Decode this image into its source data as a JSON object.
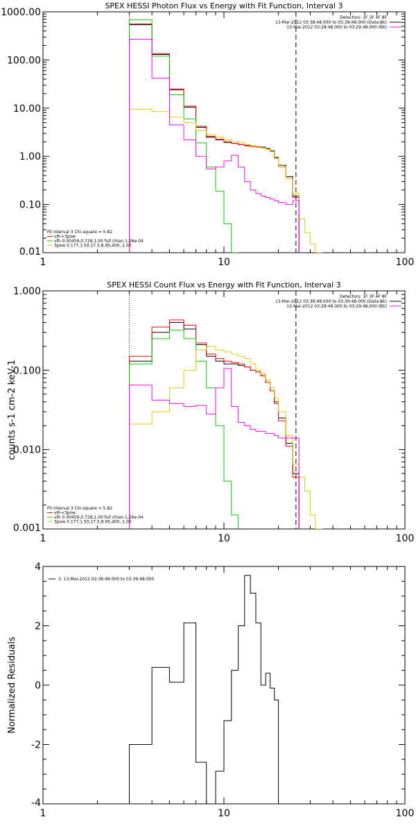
{
  "chart_data": [
    {
      "id": "photon",
      "type": "line",
      "title": "SPEX HESSI Photon Flux vs Energy with Fit Function, Interval 3",
      "ylabel": "",
      "xlabel": "",
      "xscale": "log",
      "yscale": "log",
      "xlim": [
        1,
        100
      ],
      "ylim": [
        0.01,
        1000
      ],
      "xticks": [
        1,
        10,
        100
      ],
      "xtick_labels": [
        "1",
        "10",
        "100"
      ],
      "yticks": [
        0.01,
        0.1,
        1,
        10,
        100,
        1000
      ],
      "ytick_labels": [
        "0.01",
        "0.10",
        "1.00",
        "10.00",
        "100.00",
        "1000.00"
      ],
      "vlines": [
        {
          "x": 3,
          "style": "dotted"
        },
        {
          "x": 25,
          "style": "dashed"
        }
      ],
      "legend_tr": [
        "Detectors: 1F 3F 4F 8F",
        "13-Mar-2012 03:38:48.000 to 03:39:48.000 (Data-Bk)",
        "13-Mar-2012 03:28:48.000 to 03:29:48.000 (Bk)"
      ],
      "legend_tr_colors": [
        "",
        "#000000",
        "#ff00ff"
      ],
      "legend_bl": [
        "Fit Interval 3   Chi-square = 5.82",
        "vth+3pow",
        "vth 0.00459,0.728,1.00   full chian 1.26e-04",
        "3pow 0.177,1.50,17.5,8.95,400.,1.00"
      ],
      "legend_bl_colors": [
        "",
        "#ff0000",
        "#00cc00",
        "#e6c800"
      ],
      "edges": [
        3,
        4,
        5,
        6,
        7,
        8,
        9,
        10,
        11,
        12,
        13,
        14,
        15,
        16,
        17,
        18,
        19,
        20,
        22,
        24,
        26,
        28,
        30,
        32,
        35
      ],
      "series": [
        {
          "color": "#000000",
          "values": [
            540,
            130,
            24,
            10.5,
            4,
            2.5,
            2.2,
            1.95,
            1.85,
            1.75,
            1.7,
            1.65,
            1.6,
            1.55,
            1.45,
            1.3,
            0.95,
            0.65,
            0.38,
            0.15,
            null,
            null,
            null,
            null
          ]
        },
        {
          "color": "#ff0000",
          "values": [
            560,
            135,
            25,
            11,
            4.2,
            2.6,
            2.25,
            2.0,
            1.85,
            1.75,
            1.65,
            1.6,
            1.55,
            1.5,
            1.4,
            1.25,
            0.9,
            0.6,
            0.35,
            0.14,
            null,
            null,
            null,
            null
          ]
        },
        {
          "color": "#00cc00",
          "values": [
            680,
            120,
            19,
            6,
            1.9,
            0.6,
            0.19,
            0.04,
            0.004,
            null,
            null,
            null,
            null,
            null,
            null,
            null,
            null,
            null,
            null,
            null,
            null,
            null,
            null,
            null
          ]
        },
        {
          "color": "#e6c800",
          "values": [
            9.5,
            8.5,
            6.5,
            5,
            3.5,
            2.8,
            2.5,
            2.2,
            2.0,
            1.9,
            1.75,
            1.65,
            1.6,
            1.5,
            1.4,
            1.25,
            0.9,
            0.6,
            0.35,
            0.17,
            0.05,
            0.026,
            0.015,
            0.01
          ]
        },
        {
          "color": "#ff00ff",
          "values": [
            270,
            42,
            4.5,
            2.2,
            1.0,
            0.55,
            0.6,
            0.8,
            1.05,
            0.6,
            0.3,
            0.2,
            0.17,
            0.15,
            0.14,
            0.13,
            0.12,
            0.11,
            0.1,
            0.12,
            null,
            null,
            null,
            null
          ]
        }
      ]
    },
    {
      "id": "count",
      "type": "line",
      "title": "SPEX HESSI Count Flux vs Energy with Fit Function, Interval 3",
      "ylabel": "counts s-1 cm-2 keV-1",
      "xlabel": "",
      "xscale": "log",
      "yscale": "log",
      "xlim": [
        1,
        100
      ],
      "ylim": [
        0.001,
        1
      ],
      "xticks": [
        1,
        10,
        100
      ],
      "xtick_labels": [
        "1",
        "10",
        "100"
      ],
      "yticks": [
        0.001,
        0.01,
        0.1,
        1
      ],
      "ytick_labels": [
        "0.001",
        "0.010",
        "0.100",
        "1.000"
      ],
      "vlines": [
        {
          "x": 3,
          "style": "dotted"
        },
        {
          "x": 25,
          "style": "dashed"
        }
      ],
      "legend_tr": [
        "Detectors: 1F 3F 4F 8F",
        "13-Mar-2012 03:38:48.000 to 03:39:48.000 (Data-Bk)",
        "13-Mar-2012 03:28:48.000 to 03:29:48.000 (Bk)"
      ],
      "legend_tr_colors": [
        "",
        "#000000",
        "#ff00ff"
      ],
      "legend_bl": [
        "Fit Interval 3   Chi-square = 5.82",
        "vth+3pow",
        "vth 0.00459,0.728,1.00   full chian 1.26e-04",
        "3pow 0.177,1.50,17.5,8.95,400.,1.00"
      ],
      "legend_bl_colors": [
        "",
        "#ff0000",
        "#00cc00",
        "#e6c800"
      ],
      "edges": [
        3,
        4,
        5,
        6,
        7,
        8,
        9,
        10,
        11,
        12,
        13,
        14,
        15,
        16,
        17,
        18,
        19,
        20,
        22,
        24,
        26,
        28,
        30,
        32,
        35
      ],
      "series": [
        {
          "color": "#000000",
          "values": [
            0.13,
            0.3,
            0.4,
            0.33,
            0.21,
            0.15,
            0.13,
            0.12,
            0.12,
            0.115,
            0.11,
            0.1,
            0.095,
            0.085,
            0.07,
            0.055,
            0.04,
            0.025,
            0.012,
            0.005,
            null,
            null,
            null,
            null
          ]
        },
        {
          "color": "#ff0000",
          "values": [
            0.15,
            0.35,
            0.43,
            0.37,
            0.22,
            0.16,
            0.14,
            0.13,
            0.125,
            0.12,
            0.11,
            0.1,
            0.095,
            0.085,
            0.07,
            0.055,
            0.038,
            0.023,
            0.011,
            0.0045,
            null,
            null,
            null,
            null
          ]
        },
        {
          "color": "#00cc00",
          "values": [
            0.12,
            0.25,
            0.32,
            0.25,
            0.13,
            0.06,
            0.02,
            0.004,
            0.0015,
            null,
            null,
            null,
            null,
            null,
            null,
            null,
            null,
            null,
            null,
            null,
            null,
            null,
            null,
            null
          ]
        },
        {
          "color": "#e6c800",
          "values": [
            0.021,
            0.03,
            0.06,
            0.1,
            0.18,
            0.2,
            0.18,
            0.17,
            0.16,
            0.15,
            0.14,
            0.12,
            0.1,
            0.09,
            0.075,
            0.06,
            0.045,
            0.03,
            0.015,
            0.0065,
            0.0045,
            0.003,
            0.0015,
            0.001
          ]
        },
        {
          "color": "#ff00ff",
          "values": [
            0.065,
            0.042,
            0.038,
            0.035,
            0.036,
            0.028,
            0.06,
            0.105,
            0.035,
            0.022,
            0.02,
            0.018,
            0.017,
            0.017,
            0.016,
            0.016,
            0.015,
            0.014,
            0.014,
            0.014,
            null,
            null,
            null,
            null
          ]
        }
      ]
    },
    {
      "id": "residuals",
      "type": "line",
      "title": "",
      "ylabel": "Normalized Residuals",
      "xlabel": "",
      "xscale": "log",
      "yscale": "linear",
      "xlim": [
        1,
        100
      ],
      "ylim": [
        -4,
        4
      ],
      "xticks": [
        1,
        10,
        100
      ],
      "xtick_labels": [
        "1",
        "10",
        "100"
      ],
      "yticks": [
        -4,
        -2,
        0,
        2,
        4
      ],
      "ytick_labels": [
        "-4",
        "-2",
        "0",
        "2",
        "4"
      ],
      "legend_tl": [
        "3. 13-Mar-2012 03:38:48.000 to 03:39:48.000"
      ],
      "edges": [
        3,
        4,
        5,
        6,
        7,
        8,
        9,
        10,
        11,
        12,
        13,
        14,
        15,
        16,
        17,
        18,
        19,
        20,
        22,
        24,
        26
      ],
      "series": [
        {
          "color": "#000000",
          "values": [
            -2.0,
            0.6,
            0.1,
            2.1,
            -2.6,
            -4.0,
            -2.9,
            -1.2,
            0.5,
            2.0,
            3.7,
            3.1,
            2.1,
            0.0,
            0.4,
            -0.1,
            -0.5,
            null,
            null,
            null
          ]
        }
      ],
      "residual_steps": [
        [
          3.0,
          -4.2
        ],
        [
          3.0,
          -2.0
        ],
        [
          4.0,
          -2.0
        ],
        [
          4.0,
          0.6
        ],
        [
          5.0,
          0.6
        ],
        [
          5.0,
          0.1
        ],
        [
          6.0,
          0.1
        ],
        [
          6.0,
          2.1
        ],
        [
          7.0,
          2.1
        ],
        [
          7.0,
          -2.6
        ],
        [
          8.0,
          -2.6
        ],
        [
          8.0,
          -4.0
        ],
        [
          9.0,
          -4.0
        ],
        [
          9.0,
          -2.9
        ],
        [
          10.0,
          -2.9
        ],
        [
          10.0,
          -1.2
        ],
        [
          11.0,
          -1.2
        ],
        [
          11.0,
          0.5
        ],
        [
          12.0,
          0.5
        ],
        [
          12.0,
          2.0
        ],
        [
          13.0,
          2.0
        ],
        [
          13.0,
          3.7
        ],
        [
          14.0,
          3.7
        ],
        [
          14.0,
          3.1
        ],
        [
          15.0,
          3.1
        ],
        [
          15.0,
          2.1
        ],
        [
          16.0,
          2.1
        ],
        [
          16.0,
          0.0
        ],
        [
          17.0,
          0.0
        ],
        [
          17.0,
          0.4
        ],
        [
          18.0,
          0.4
        ],
        [
          18.0,
          -0.1
        ],
        [
          19.0,
          -0.1
        ],
        [
          19.0,
          -0.5
        ],
        [
          20.0,
          -0.5
        ],
        [
          20.0,
          -4.2
        ]
      ]
    }
  ]
}
